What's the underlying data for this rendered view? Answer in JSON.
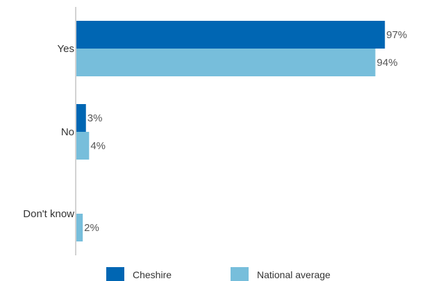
{
  "chart_data": {
    "type": "bar",
    "orientation": "horizontal",
    "categories": [
      "Yes",
      "No",
      "Don't know"
    ],
    "series": [
      {
        "name": "Cheshire",
        "values": [
          97,
          3,
          0
        ],
        "labels": [
          "97%",
          "3%",
          ""
        ],
        "color": "#0066b3"
      },
      {
        "name": "National average",
        "values": [
          94,
          4,
          2
        ],
        "labels": [
          "94%",
          "4%",
          "2%"
        ],
        "color": "#77bedb"
      }
    ],
    "xlim": [
      0,
      100
    ],
    "grid": false,
    "legend": "bottom"
  }
}
